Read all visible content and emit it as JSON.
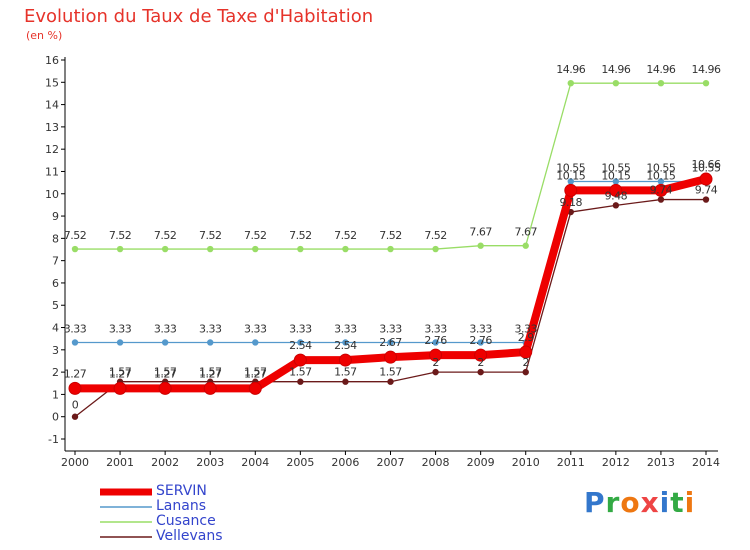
{
  "chart_data": {
    "type": "line",
    "title": "Evolution du Taux de Taxe d'Habitation",
    "subtitle": "(en %)",
    "xlabel": "",
    "ylabel": "",
    "ylim": [
      -1,
      16
    ],
    "yticks": [
      "-1",
      "0",
      "1",
      "2",
      "3",
      "4",
      "5",
      "6",
      "7",
      "8",
      "9",
      "10",
      "11",
      "12",
      "13",
      "14",
      "15",
      "16"
    ],
    "categories": [
      "2000",
      "2001",
      "2002",
      "2003",
      "2004",
      "2005",
      "2006",
      "2007",
      "2008",
      "2009",
      "2010",
      "2011",
      "2012",
      "2013",
      "2014"
    ],
    "series": [
      {
        "name": "Cusance",
        "color": "#99dd66",
        "values": [
          7.52,
          7.52,
          7.52,
          7.52,
          7.52,
          7.52,
          7.52,
          7.52,
          7.52,
          7.67,
          7.67,
          14.96,
          14.96,
          14.96,
          14.96
        ],
        "labels": [
          "7.52",
          "7.52",
          "7.52",
          "7.52",
          "7.52",
          "7.52",
          "7.52",
          "7.52",
          "7.52",
          "7.67",
          "7.67",
          "14.96",
          "14.96",
          "14.96",
          "14.96"
        ]
      },
      {
        "name": "Lanans",
        "color": "#5599cc",
        "values": [
          3.33,
          3.33,
          3.33,
          3.33,
          3.33,
          3.33,
          3.33,
          3.33,
          3.33,
          3.33,
          3.33,
          10.55,
          10.55,
          10.55,
          10.55
        ],
        "labels": [
          "3.33",
          "3.33",
          "3.33",
          "3.33",
          "3.33",
          "3.33",
          "3.33",
          "3.33",
          "3.33",
          "3.33",
          "3.33",
          "10.55",
          "10.55",
          "10.55",
          "10.55"
        ]
      },
      {
        "name": "Vellevans",
        "color": "#6b1a1a",
        "values": [
          0,
          1.57,
          1.57,
          1.57,
          1.57,
          1.57,
          1.57,
          1.57,
          2,
          2,
          2,
          9.18,
          9.48,
          9.74,
          9.74
        ],
        "labels": [
          "0",
          "1.57",
          "1.57",
          "1.57",
          "1.57",
          "1.57",
          "1.57",
          "1.57",
          "2",
          "2",
          "2",
          "9.18",
          "9.48",
          "9.74",
          "9.74"
        ]
      },
      {
        "name": "SERVIN",
        "color": "#ee0000",
        "values": [
          1.27,
          1.27,
          1.27,
          1.27,
          1.27,
          2.54,
          2.54,
          2.67,
          2.76,
          2.76,
          2.9,
          10.15,
          10.15,
          10.15,
          10.66
        ],
        "labels": [
          "1.27",
          "1.27",
          "1.27",
          "1.27",
          "1.27",
          "2.54",
          "2.54",
          "2.67",
          "2.76",
          "2.76",
          "2.9",
          "10.15",
          "10.15",
          "10.15",
          "10.66"
        ]
      }
    ],
    "legend": [
      "SERVIN",
      "Lanans",
      "Cusance",
      "Vellevans"
    ],
    "legend_position": "bottom-left",
    "grid": false
  },
  "colors": {
    "title": "#e6332a",
    "axis": "#000000",
    "label": "#333333",
    "legend_text": "#3344cc"
  },
  "logo": {
    "letters": [
      "P",
      "r",
      "o",
      "x",
      "i",
      "t",
      "i"
    ],
    "colors": [
      "#3377cc",
      "#33aa44",
      "#ee7711",
      "#ee4444",
      "#3377cc",
      "#33aa44",
      "#ee7711"
    ]
  }
}
